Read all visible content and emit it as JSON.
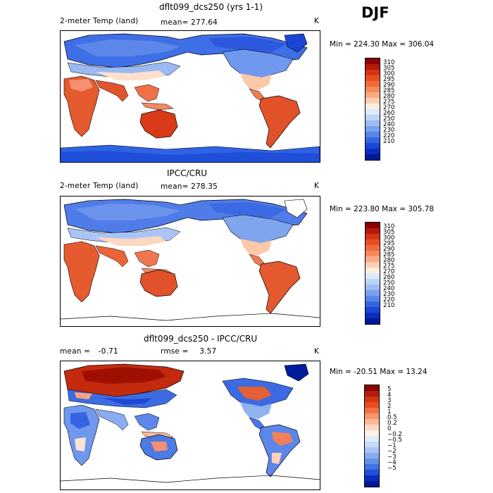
{
  "season": "DJF",
  "panels": [
    {
      "title": "dflt099_dcs250 (yrs 1-1)",
      "left_label": "2-meter Temp (land)",
      "mean_label": "mean=",
      "mean_value": "277.64",
      "units": "K",
      "minmax": "Min = 224.30 Max = 306.04",
      "colorbar": {
        "colors": [
          "#8b0000",
          "#b51a0a",
          "#d43414",
          "#e84e22",
          "#f26a3a",
          "#f78a5c",
          "#fbaa84",
          "#fdcfb0",
          "#ffeedd",
          "#dde8fb",
          "#bcd4f8",
          "#9bbcf4",
          "#7aa1ef",
          "#5885ea",
          "#3566e2",
          "#1a47d6",
          "#0b2cc0",
          "#001996"
        ],
        "labels": [
          "310",
          "305",
          "300",
          "295",
          "290",
          "285",
          "280",
          "275",
          "270",
          "260",
          "250",
          "240",
          "230",
          "220",
          "210"
        ]
      }
    },
    {
      "title": "IPCC/CRU",
      "left_label": "2-meter Temp (land)",
      "mean_label": "mean=",
      "mean_value": "278.35",
      "units": "K",
      "minmax": "Min = 223.80 Max = 305.78",
      "colorbar": {
        "colors": [
          "#8b0000",
          "#b51a0a",
          "#d43414",
          "#e84e22",
          "#f26a3a",
          "#f78a5c",
          "#fbaa84",
          "#fdcfb0",
          "#ffeedd",
          "#dde8fb",
          "#bcd4f8",
          "#9bbcf4",
          "#7aa1ef",
          "#5885ea",
          "#3566e2",
          "#1a47d6",
          "#0b2cc0",
          "#001996"
        ],
        "labels": [
          "310",
          "305",
          "300",
          "295",
          "290",
          "285",
          "280",
          "275",
          "270",
          "260",
          "250",
          "240",
          "230",
          "220",
          "210"
        ]
      }
    },
    {
      "title": "dflt099_dcs250 - IPCC/CRU",
      "left_label": "mean =",
      "mean_label": "",
      "mean_value": "-0.71",
      "rmse_label": "rmse =",
      "rmse_value": "3.57",
      "units": "K",
      "minmax": "Min = -20.51 Max =    13.24",
      "colorbar": {
        "colors": [
          "#8b0000",
          "#b51a0a",
          "#d43414",
          "#e84e22",
          "#f27045",
          "#f8966d",
          "#fbb996",
          "#fdd9c4",
          "#fff0e6",
          "#e2ecfb",
          "#c6dbf8",
          "#a8c6f4",
          "#86aef0",
          "#6492eb",
          "#3f72e4",
          "#1f50d8",
          "#0b2cc0",
          "#001996"
        ],
        "labels": [
          "5",
          "4",
          "3",
          "2",
          "1",
          "0.5",
          "0.2",
          "0",
          "−0.2",
          "−0.5",
          "−1",
          "−2",
          "−3",
          "−4",
          "−5"
        ]
      }
    }
  ]
}
